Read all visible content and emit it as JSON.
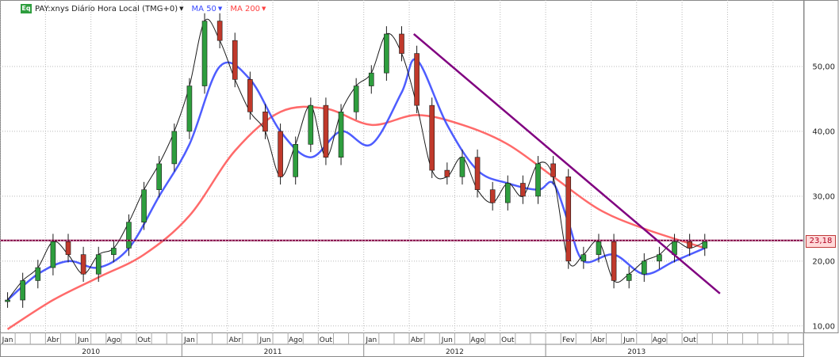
{
  "legend": {
    "badge": "Eq",
    "symbol": "PAY:xnys Diário Hora Local (TMG+0)",
    "ma50": "MA 50",
    "ma200": "MA 200"
  },
  "colors": {
    "price": "#1a1a1a",
    "ma50": "#3b4bff",
    "ma200": "#ff5a5a",
    "trendline": "#800080",
    "hline": "#800040",
    "grid": "#b9b9b9",
    "up_candle": "#2e9e3e",
    "down_candle": "#c0392b"
  },
  "chart_data": {
    "type": "candlestick",
    "title": "PAY:xnys Diário Hora Local (TMG+0)",
    "y_scale": "linear",
    "ylim": [
      9,
      60
    ],
    "y_ticks": [
      "10,00",
      "20,00",
      "30,00",
      "40,00",
      "50,00"
    ],
    "month_labels": [
      "Jan",
      "Abr",
      "Jun",
      "Ago",
      "Out",
      "Jan",
      "Abr",
      "Jun",
      "Ago",
      "Out",
      "Jan",
      "Abr",
      "Jun",
      "Ago",
      "Out",
      "Fev",
      "Abr",
      "Jun",
      "Ago",
      "Out"
    ],
    "year_labels": [
      "2010",
      "2011",
      "2012",
      "2013"
    ],
    "horizontal_line": {
      "value": 23.18,
      "label": "23,18"
    },
    "trendline": {
      "from": [
        "2012-04",
        55
      ],
      "to": [
        "2013-12",
        15
      ]
    },
    "series": [
      {
        "name": "PAY",
        "points": [
          [
            "2010-01",
            14
          ],
          [
            "2010-02",
            17
          ],
          [
            "2010-03",
            19
          ],
          [
            "2010-04",
            23
          ],
          [
            "2010-05",
            21
          ],
          [
            "2010-06",
            18
          ],
          [
            "2010-07",
            21
          ],
          [
            "2010-08",
            22
          ],
          [
            "2010-09",
            26
          ],
          [
            "2010-10",
            31
          ],
          [
            "2010-11",
            35
          ],
          [
            "2010-12",
            40
          ],
          [
            "2011-01",
            47
          ],
          [
            "2011-02",
            57
          ],
          [
            "2011-03",
            54
          ],
          [
            "2011-04",
            48
          ],
          [
            "2011-05",
            43
          ],
          [
            "2011-06",
            40
          ],
          [
            "2011-07",
            33
          ],
          [
            "2011-08",
            38
          ],
          [
            "2011-09",
            44
          ],
          [
            "2011-10",
            36
          ],
          [
            "2011-11",
            43
          ],
          [
            "2011-12",
            47
          ],
          [
            "2012-01",
            49
          ],
          [
            "2012-02",
            55
          ],
          [
            "2012-03",
            52
          ],
          [
            "2012-04",
            44
          ],
          [
            "2012-05",
            34
          ],
          [
            "2012-06",
            33
          ],
          [
            "2012-07",
            36
          ],
          [
            "2012-08",
            31
          ],
          [
            "2012-09",
            29
          ],
          [
            "2012-10",
            32
          ],
          [
            "2012-11",
            30
          ],
          [
            "2012-12",
            35
          ],
          [
            "2013-01",
            33
          ],
          [
            "2013-02",
            20
          ],
          [
            "2013-03",
            21
          ],
          [
            "2013-04",
            23
          ],
          [
            "2013-05",
            17
          ],
          [
            "2013-06",
            18
          ],
          [
            "2013-07",
            20
          ],
          [
            "2013-08",
            21
          ],
          [
            "2013-09",
            23
          ],
          [
            "2013-10",
            22
          ],
          [
            "2013-11",
            23
          ]
        ]
      },
      {
        "name": "MA 50",
        "points": [
          [
            "2010-01",
            14
          ],
          [
            "2010-03",
            18
          ],
          [
            "2010-05",
            20
          ],
          [
            "2010-07",
            19
          ],
          [
            "2010-09",
            22
          ],
          [
            "2010-11",
            30
          ],
          [
            "2011-01",
            38
          ],
          [
            "2011-03",
            50
          ],
          [
            "2011-05",
            48
          ],
          [
            "2011-07",
            40
          ],
          [
            "2011-09",
            36
          ],
          [
            "2011-11",
            40
          ],
          [
            "2012-01",
            38
          ],
          [
            "2012-03",
            46
          ],
          [
            "2012-04",
            51
          ],
          [
            "2012-06",
            41
          ],
          [
            "2012-08",
            34
          ],
          [
            "2012-10",
            32
          ],
          [
            "2012-12",
            31
          ],
          [
            "2013-01",
            32
          ],
          [
            "2013-02",
            26
          ],
          [
            "2013-03",
            20
          ],
          [
            "2013-05",
            21
          ],
          [
            "2013-07",
            18
          ],
          [
            "2013-09",
            20
          ],
          [
            "2013-11",
            22
          ]
        ]
      },
      {
        "name": "MA 200",
        "points": [
          [
            "2010-01",
            9.5
          ],
          [
            "2010-04",
            14
          ],
          [
            "2010-07",
            17.5
          ],
          [
            "2010-10",
            21
          ],
          [
            "2011-01",
            27
          ],
          [
            "2011-04",
            37
          ],
          [
            "2011-07",
            43
          ],
          [
            "2011-10",
            43.5
          ],
          [
            "2012-01",
            41
          ],
          [
            "2012-04",
            42.5
          ],
          [
            "2012-07",
            41
          ],
          [
            "2012-10",
            38
          ],
          [
            "2013-01",
            33
          ],
          [
            "2013-04",
            28
          ],
          [
            "2013-07",
            25
          ],
          [
            "2013-11",
            22
          ]
        ]
      }
    ]
  }
}
